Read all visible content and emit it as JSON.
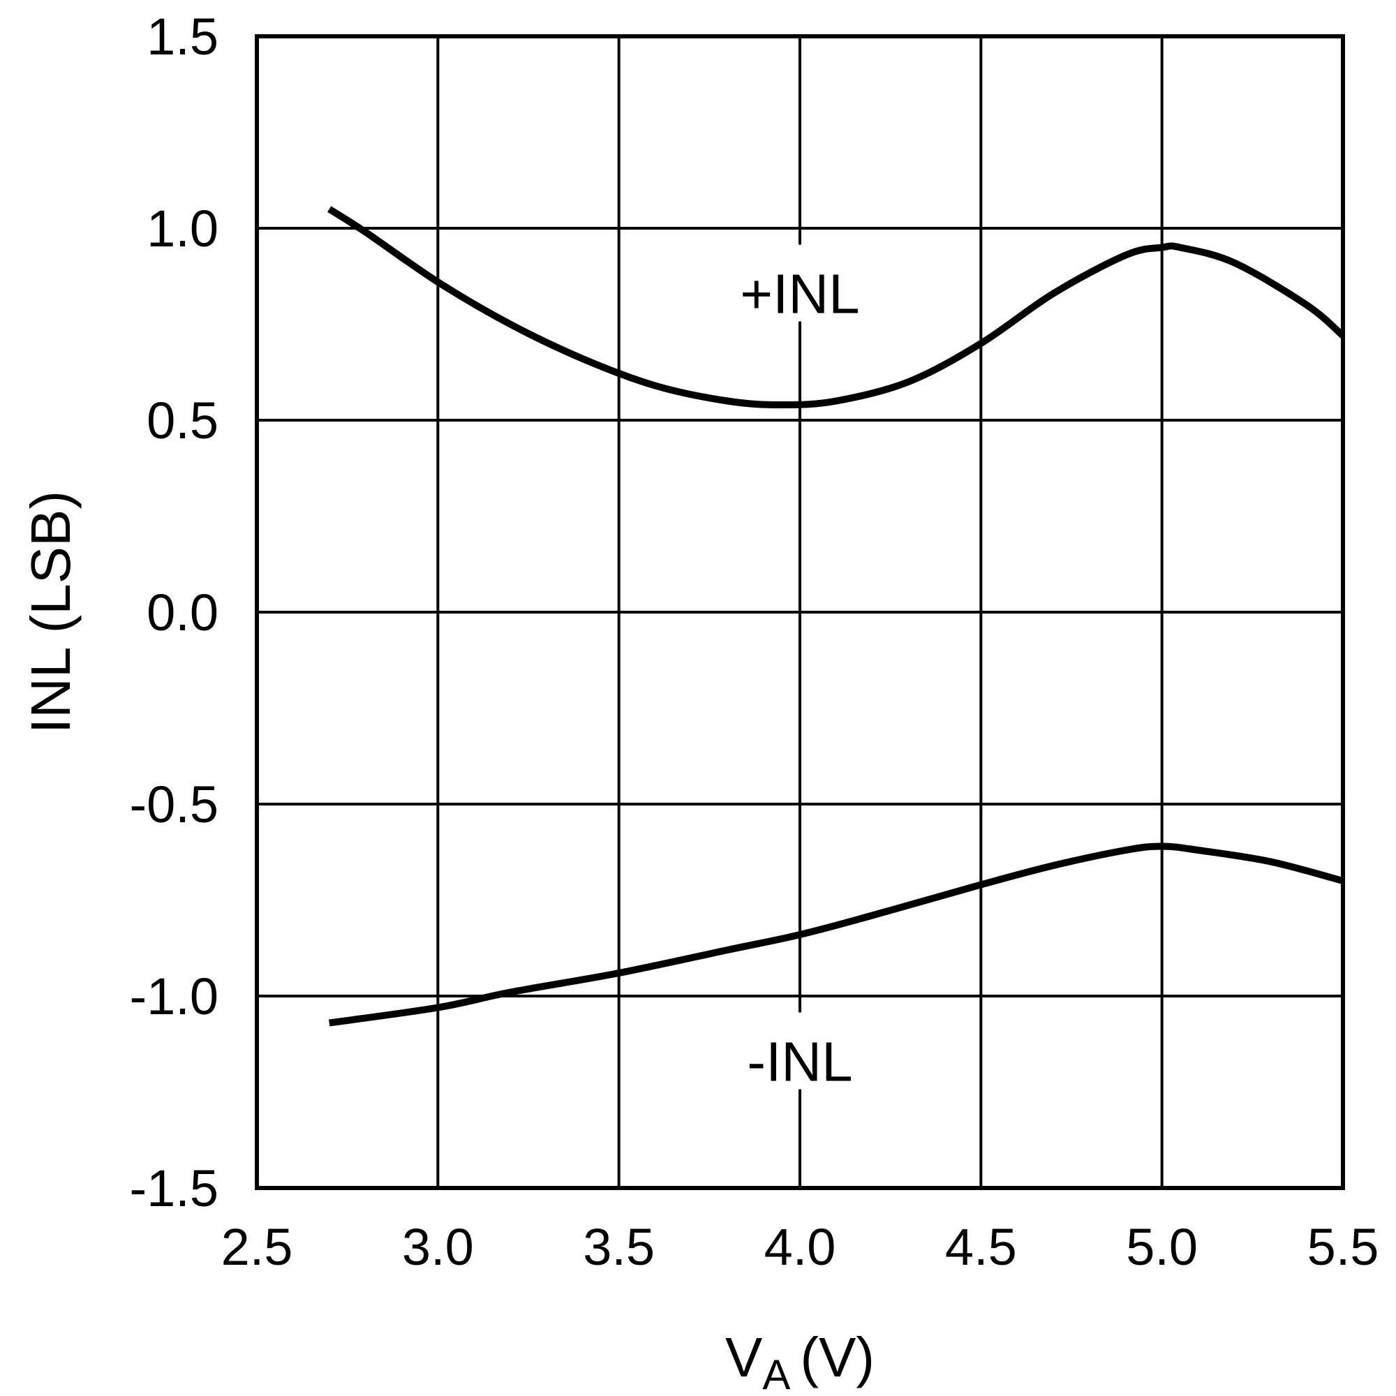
{
  "chart_data": {
    "type": "line",
    "xlabel": "V",
    "xlabel_subscript": "A",
    "xlabel_unit": "(V)",
    "ylabel": "INL (LSB)",
    "xlim": [
      2.5,
      5.5
    ],
    "ylim": [
      -1.5,
      1.5
    ],
    "grid": true,
    "x_ticks": [
      "2.5",
      "3.0",
      "3.5",
      "4.0",
      "4.5",
      "5.0",
      "5.5"
    ],
    "y_ticks": [
      "1.5",
      "1.0",
      "0.5",
      "0.0",
      "-0.5",
      "-1.0",
      "-1.5"
    ],
    "series": [
      {
        "name": "+INL",
        "label_at": [
          4.0,
          0.83
        ],
        "x": [
          2.7,
          2.8,
          3.0,
          3.2,
          3.4,
          3.6,
          3.8,
          3.95,
          4.1,
          4.3,
          4.5,
          4.7,
          4.9,
          5.0,
          5.05,
          5.2,
          5.4,
          5.5
        ],
        "y": [
          1.05,
          0.99,
          0.86,
          0.75,
          0.66,
          0.59,
          0.55,
          0.54,
          0.55,
          0.6,
          0.7,
          0.83,
          0.93,
          0.95,
          0.95,
          0.91,
          0.8,
          0.72
        ]
      },
      {
        "name": "-INL",
        "label_at": [
          4.0,
          -1.17
        ],
        "x": [
          2.7,
          3.0,
          3.2,
          3.5,
          3.8,
          4.0,
          4.2,
          4.5,
          4.7,
          4.9,
          5.0,
          5.1,
          5.3,
          5.5
        ],
        "y": [
          -1.07,
          -1.03,
          -0.99,
          -0.94,
          -0.88,
          -0.84,
          -0.79,
          -0.71,
          -0.66,
          -0.62,
          -0.61,
          -0.62,
          -0.65,
          -0.7
        ]
      }
    ]
  }
}
